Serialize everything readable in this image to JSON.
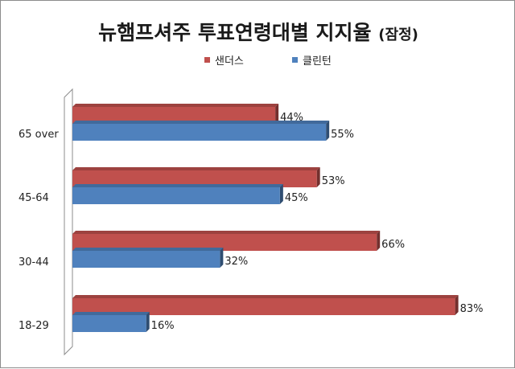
{
  "chart_data": {
    "type": "bar",
    "orientation": "horizontal",
    "title": "뉴햄프셔주 투표연령대별 지지율",
    "subtitle": "(잠정)",
    "categories": [
      "65 over",
      "45-64",
      "30-44",
      "18-29"
    ],
    "series": [
      {
        "name": "샌더스",
        "color": "#c0504d",
        "values": [
          44,
          53,
          66,
          83
        ],
        "labels": [
          "44%",
          "53%",
          "66%",
          "83%"
        ]
      },
      {
        "name": "클린턴",
        "color": "#4f81bd",
        "values": [
          55,
          45,
          32,
          16
        ],
        "labels": [
          "55%",
          "45%",
          "32%",
          "16%"
        ]
      }
    ],
    "xlim": [
      0,
      100
    ],
    "grid": false,
    "legend_position": "top"
  }
}
